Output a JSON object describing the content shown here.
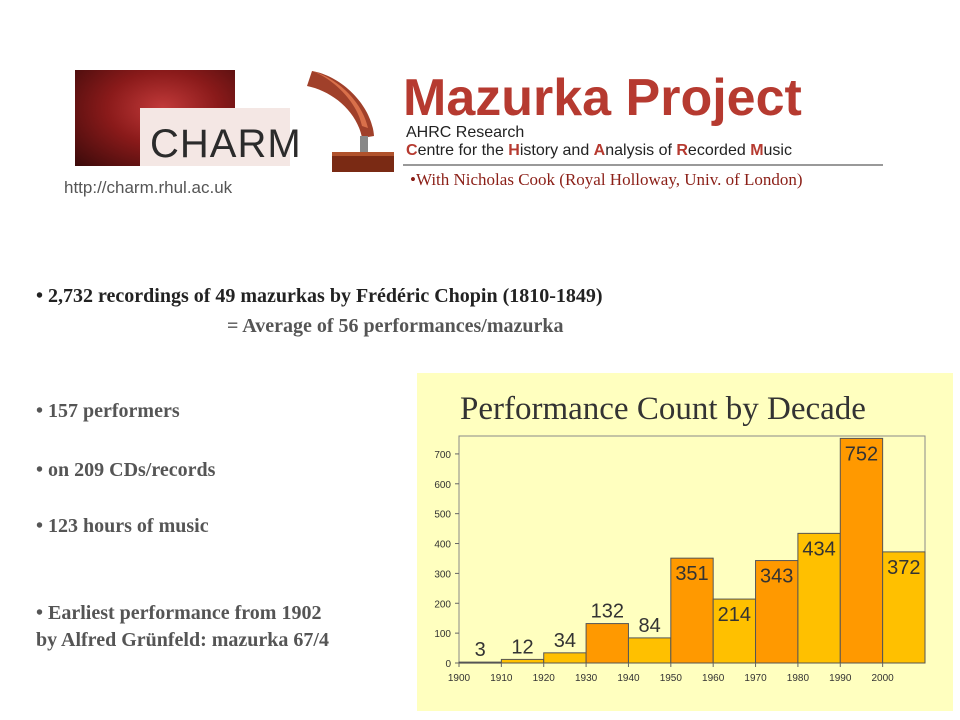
{
  "header": {
    "logo_text": "CHARM",
    "title": "Mazurka   Project",
    "subtitle_line1": "AHRC Research",
    "subtitle_line2_parts": [
      {
        "cap": "C",
        "rest": "entre for the "
      },
      {
        "cap": "H",
        "rest": "istory and "
      },
      {
        "cap": "A",
        "rest": "nalysis of "
      },
      {
        "cap": "R",
        "rest": "ecorded "
      },
      {
        "cap": "M",
        "rest": "usic"
      }
    ],
    "url": "http://charm.rhul.ac.uk",
    "collaboration": "•With Nicholas Cook (Royal Holloway, Univ. of London)"
  },
  "bullets": {
    "recordings": "• 2,732 recordings of 49 mazurkas by Frédéric Chopin (1810-1849)",
    "average": "= Average of 56 performances/mazurka",
    "performers": "• 157 performers",
    "cds": "• on 209 CDs/records",
    "hours": "• 123 hours of music",
    "earliest_line1": "• Earliest performance from 1902",
    "earliest_line2": "by Alfred Grünfeld: mazurka 67/4"
  },
  "colors": {
    "accent": "#b63a30",
    "chart_bg": "#ffffbf",
    "bar_light": "#ffc000",
    "bar_dark": "#ff9900"
  },
  "chart_data": {
    "type": "bar",
    "title": "Performance Count by Decade",
    "categories": [
      "1900",
      "1910",
      "1920",
      "1930",
      "1940",
      "1950",
      "1960",
      "1970",
      "1980",
      "1990",
      "2000"
    ],
    "x_tick_labels": [
      "1900",
      "1910",
      "1920",
      "1930",
      "1940",
      "1950",
      "1960",
      "1970",
      "1980",
      "1990",
      "2000"
    ],
    "values": [
      3,
      12,
      34,
      132,
      84,
      351,
      214,
      343,
      434,
      752,
      372
    ],
    "bar_shades": [
      "light",
      "light",
      "light",
      "dark",
      "light",
      "dark",
      "light",
      "dark",
      "light",
      "dark",
      "light"
    ],
    "y_ticks": [
      0,
      100,
      200,
      300,
      400,
      500,
      600,
      700
    ],
    "ylim": [
      0,
      760
    ],
    "xlabel": "",
    "ylabel": "",
    "grid": false,
    "legend": "none"
  }
}
